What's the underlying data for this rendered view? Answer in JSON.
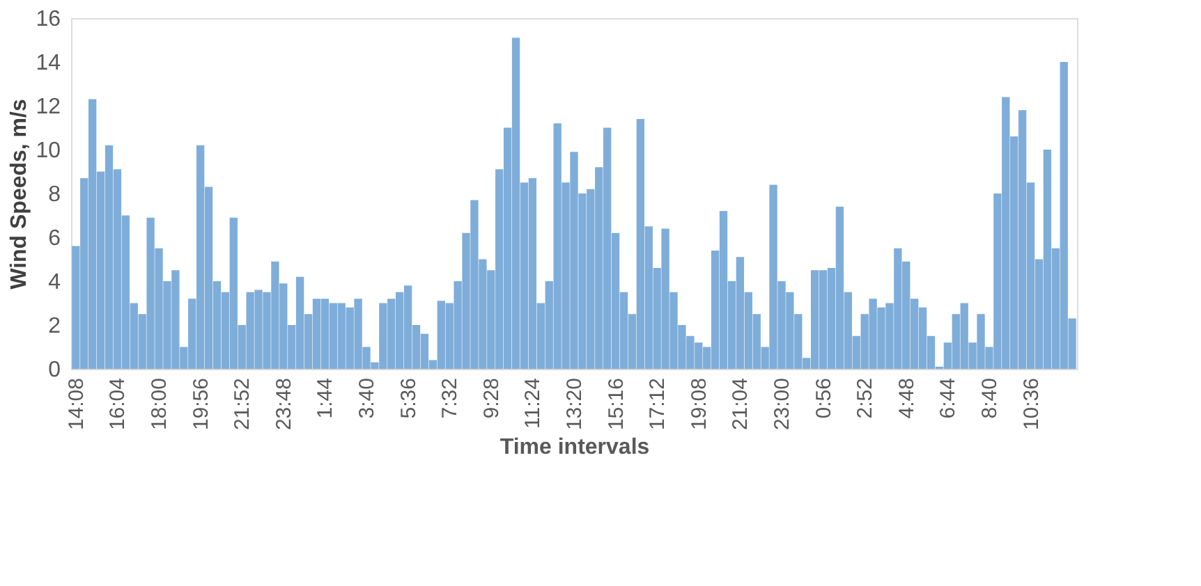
{
  "chart_data": {
    "type": "bar",
    "xlabel": "Time intervals",
    "ylabel": "Wind Speeds, m/s",
    "categories": [
      "14:08",
      null,
      null,
      null,
      null,
      "16:04",
      null,
      null,
      null,
      null,
      "18:00",
      null,
      null,
      null,
      null,
      "19:56",
      null,
      null,
      null,
      null,
      "21:52",
      null,
      null,
      null,
      null,
      "23:48",
      null,
      null,
      null,
      null,
      "1:44",
      null,
      null,
      null,
      null,
      "3:40",
      null,
      null,
      null,
      null,
      "5:36",
      null,
      null,
      null,
      null,
      "7:32",
      null,
      null,
      null,
      null,
      "9:28",
      null,
      null,
      null,
      null,
      "11:24",
      null,
      null,
      null,
      null,
      "13:20",
      null,
      null,
      null,
      null,
      "15:16",
      null,
      null,
      null,
      null,
      "17:12",
      null,
      null,
      null,
      null,
      "19:08",
      null,
      null,
      null,
      null,
      "21:04",
      null,
      null,
      null,
      null,
      "23:00",
      null,
      null,
      null,
      null,
      "0:56",
      null,
      null,
      null,
      null,
      "2:52",
      null,
      null,
      null,
      null,
      "4:48",
      null,
      null,
      null,
      null,
      "6:44",
      null,
      null,
      null,
      null,
      "8:40",
      null,
      null,
      null,
      null,
      "10:36",
      null,
      null,
      null,
      null,
      null
    ],
    "values": [
      5.6,
      8.7,
      12.3,
      9,
      10.2,
      9.1,
      7,
      3,
      2.5,
      6.9,
      5.5,
      4,
      4.5,
      1,
      3.2,
      10.2,
      8.3,
      4,
      3.5,
      6.9,
      2,
      3.5,
      3.6,
      3.5,
      4.9,
      3.9,
      2,
      4.2,
      2.5,
      3.2,
      3.2,
      3,
      3,
      2.8,
      3.2,
      1,
      0.3,
      3,
      3.2,
      3.5,
      3.8,
      2,
      1.6,
      0.4,
      3.1,
      3,
      4,
      6.2,
      7.7,
      5,
      4.5,
      9.1,
      11,
      15.1,
      8.5,
      8.7,
      3,
      4,
      11.2,
      8.5,
      9.9,
      8,
      8.2,
      9.2,
      11,
      6.2,
      3.5,
      2.5,
      11.4,
      6.5,
      4.6,
      6.4,
      3.5,
      2,
      1.5,
      1.2,
      1,
      5.4,
      7.2,
      4,
      5.1,
      3.5,
      2.5,
      1,
      8.4,
      4,
      3.5,
      2.5,
      0.5,
      4.5,
      4.5,
      4.6,
      7.4,
      3.5,
      1.5,
      2.5,
      3.2,
      2.8,
      3,
      5.5,
      4.9,
      3.2,
      2.8,
      1.5,
      0.1,
      1.2,
      2.5,
      3,
      1.2,
      2.5,
      1,
      8,
      12.4,
      10.6,
      11.8,
      8.5,
      5,
      10,
      5.5,
      14,
      2.3
    ],
    "color": "#7fadd9",
    "ylim": [
      0,
      16
    ],
    "yticks": [
      0,
      2,
      4,
      6,
      8,
      10,
      12,
      14,
      16
    ],
    "grid": false
  }
}
